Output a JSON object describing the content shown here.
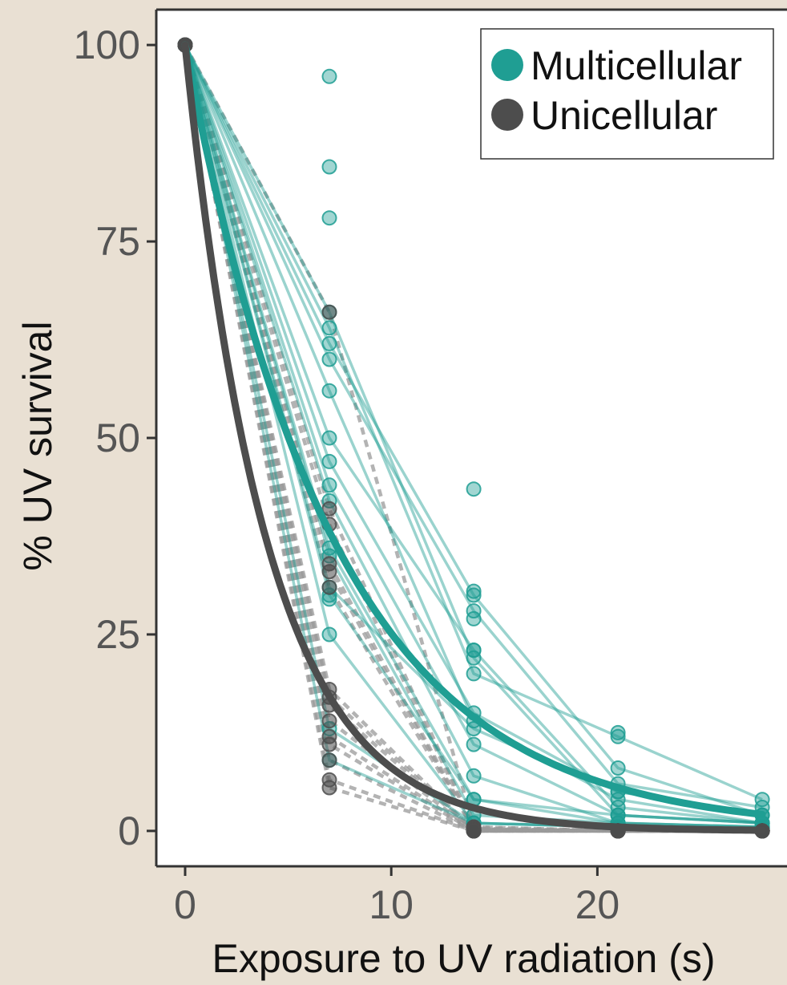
{
  "chart_data": {
    "type": "scatter",
    "xlabel": "Exposure to UV radiation (s)",
    "ylabel": "% UV survival",
    "xlim": [
      -1.4,
      29.2
    ],
    "ylim": [
      -4.5,
      104.5
    ],
    "x_ticks": [
      0,
      10,
      20
    ],
    "y_ticks": [
      0,
      25,
      50,
      75,
      100
    ],
    "x_tick_labels": [
      "0",
      "10",
      "20"
    ],
    "y_tick_labels": [
      "0",
      "25",
      "50",
      "75",
      "100"
    ],
    "grid": false,
    "legend": {
      "position": "top-right",
      "entries": [
        "Multicellular",
        "Unicellular"
      ]
    },
    "colors": {
      "Multicellular": "#1f9e93",
      "Unicellular": "#4d4d4d",
      "background": "#e9e0d3",
      "plot_background": "#ffffff"
    },
    "x": [
      0,
      7,
      14,
      21,
      28
    ],
    "series": [
      {
        "name": "Multicellular",
        "color": "#1f9e93",
        "line_style": "solid",
        "replicates": [
          [
            100,
            66,
            22,
            2,
            1
          ],
          [
            100,
            64,
            20,
            12,
            4
          ],
          [
            100,
            62,
            30,
            8,
            2
          ],
          [
            100,
            60,
            28,
            6,
            3
          ],
          [
            100,
            56,
            14,
            4,
            1
          ],
          [
            100,
            50,
            23,
            3,
            1
          ],
          [
            100,
            47,
            15,
            5,
            2
          ],
          [
            100,
            44,
            11,
            2,
            1
          ],
          [
            100,
            42,
            7,
            1,
            0.5
          ],
          [
            100,
            36,
            4,
            2,
            1
          ],
          [
            100,
            35,
            2,
            1,
            0.5
          ],
          [
            100,
            31,
            13,
            5,
            2
          ],
          [
            100,
            30,
            4,
            1,
            0.5
          ],
          [
            100,
            25,
            1,
            0.5,
            0.3
          ],
          [
            100,
            13,
            1,
            0.5,
            0.2
          ],
          [
            100,
            9,
            1,
            0.5,
            0.2
          ]
        ],
        "outlier_points": [
          [
            7,
            96
          ],
          [
            7,
            84.5
          ],
          [
            7,
            78
          ],
          [
            7,
            29.5
          ],
          [
            14,
            43.5
          ],
          [
            14,
            30.5
          ],
          [
            14,
            27
          ],
          [
            14,
            23
          ],
          [
            21,
            12.5
          ]
        ],
        "fit": {
          "model": "exponential decay",
          "rate": 0.138
        }
      },
      {
        "name": "Unicellular",
        "color": "#4d4d4d",
        "line_style": "dashed",
        "replicates": [
          [
            100,
            66,
            0.5,
            0,
            0
          ],
          [
            100,
            41,
            0.5,
            0,
            0
          ],
          [
            100,
            39,
            0.3,
            0,
            0
          ],
          [
            100,
            34,
            0.3,
            0,
            0
          ],
          [
            100,
            33,
            0.2,
            0,
            0
          ],
          [
            100,
            31,
            0.2,
            0,
            0
          ],
          [
            100,
            18,
            0.1,
            0,
            0
          ],
          [
            100,
            17,
            0.1,
            0,
            0
          ],
          [
            100,
            16,
            0.1,
            0,
            0
          ],
          [
            100,
            14,
            0,
            0,
            0
          ],
          [
            100,
            12,
            0,
            0,
            0
          ],
          [
            100,
            11,
            0,
            0,
            0
          ],
          [
            100,
            9,
            0,
            0,
            0
          ],
          [
            100,
            6.5,
            0,
            0,
            0
          ],
          [
            100,
            5.5,
            0,
            0,
            0
          ]
        ],
        "fit": {
          "model": "exponential decay",
          "rate": 0.252
        }
      }
    ]
  }
}
